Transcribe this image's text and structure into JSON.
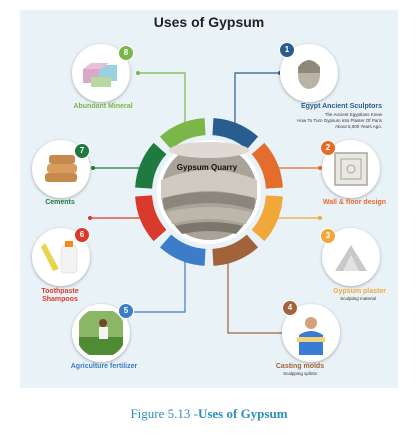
{
  "title": "Uses of Gypsum",
  "center": {
    "label": "Gypsum Quarry"
  },
  "uses": [
    {
      "number": "1",
      "label": "Egypt Ancient Sculptors",
      "sublabel_lines": [
        "The Ancient Egyptians Knew",
        "How To Turn Gypsum Into Plaster Of Paris",
        "About 5,000 Years Ago."
      ],
      "color": "#2a5d8f",
      "icon": "sculpture-head-icon"
    },
    {
      "number": "2",
      "label": "Wall & floor design",
      "sublabel_lines": [],
      "color": "#e46c2c",
      "icon": "decorative-tile-icon"
    },
    {
      "number": "3",
      "label": "Gypsum plaster",
      "sublabel_lines": [
        "Sculpting material"
      ],
      "color": "#f0a83a",
      "icon": "plaster-powder-icon"
    },
    {
      "number": "4",
      "label": "Casting molds",
      "sublabel_lines": [
        "Scalpping splints"
      ],
      "color": "#a2623a",
      "icon": "worker-with-splint-icon"
    },
    {
      "number": "5",
      "label": "Agriculture fertilizer",
      "sublabel_lines": [],
      "color": "#3d7cc9",
      "icon": "farmer-spreading-icon"
    },
    {
      "number": "6",
      "label": "Toothpaste\nShampoos",
      "sublabel_lines": [],
      "color": "#d93a2c",
      "icon": "toothpaste-shampoo-icon"
    },
    {
      "number": "7",
      "label": "Cements",
      "sublabel_lines": [],
      "color": "#1e7a3e",
      "icon": "cement-bags-icon"
    },
    {
      "number": "8",
      "label": "Abundant Mineral",
      "sublabel_lines": [],
      "color": "#7ab648",
      "icon": "mineral-blocks-icon"
    }
  ],
  "caption": {
    "prefix": "Figure 5.13 -",
    "title": "Uses of Gypsum"
  }
}
